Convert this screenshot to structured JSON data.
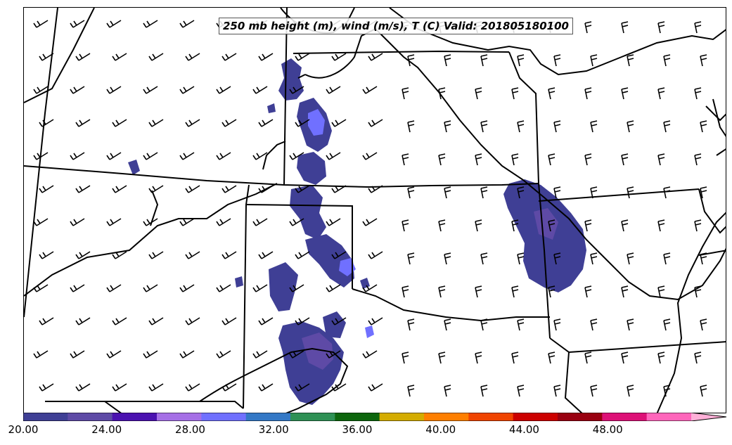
{
  "title": "250 mb height (m), wind (m/s), T (C) Valid: 201805180100",
  "colorbar": {
    "ticks": [
      "20.00",
      "24.00",
      "28.00",
      "32.00",
      "36.00",
      "40.00",
      "44.00",
      "48.00"
    ],
    "tick_values": [
      20,
      24,
      28,
      32,
      36,
      40,
      44,
      48
    ],
    "range": [
      20,
      52
    ],
    "colors": [
      "#3f3f95",
      "#5e4aa6",
      "#4b12b0",
      "#a56fe6",
      "#7070ff",
      "#3378c6",
      "#2e9155",
      "#0d660d",
      "#d4ac00",
      "#ff7f00",
      "#f04400",
      "#cc0000",
      "#990010",
      "#dd1177",
      "#ff66bb",
      "#ffb0d8"
    ]
  }
}
